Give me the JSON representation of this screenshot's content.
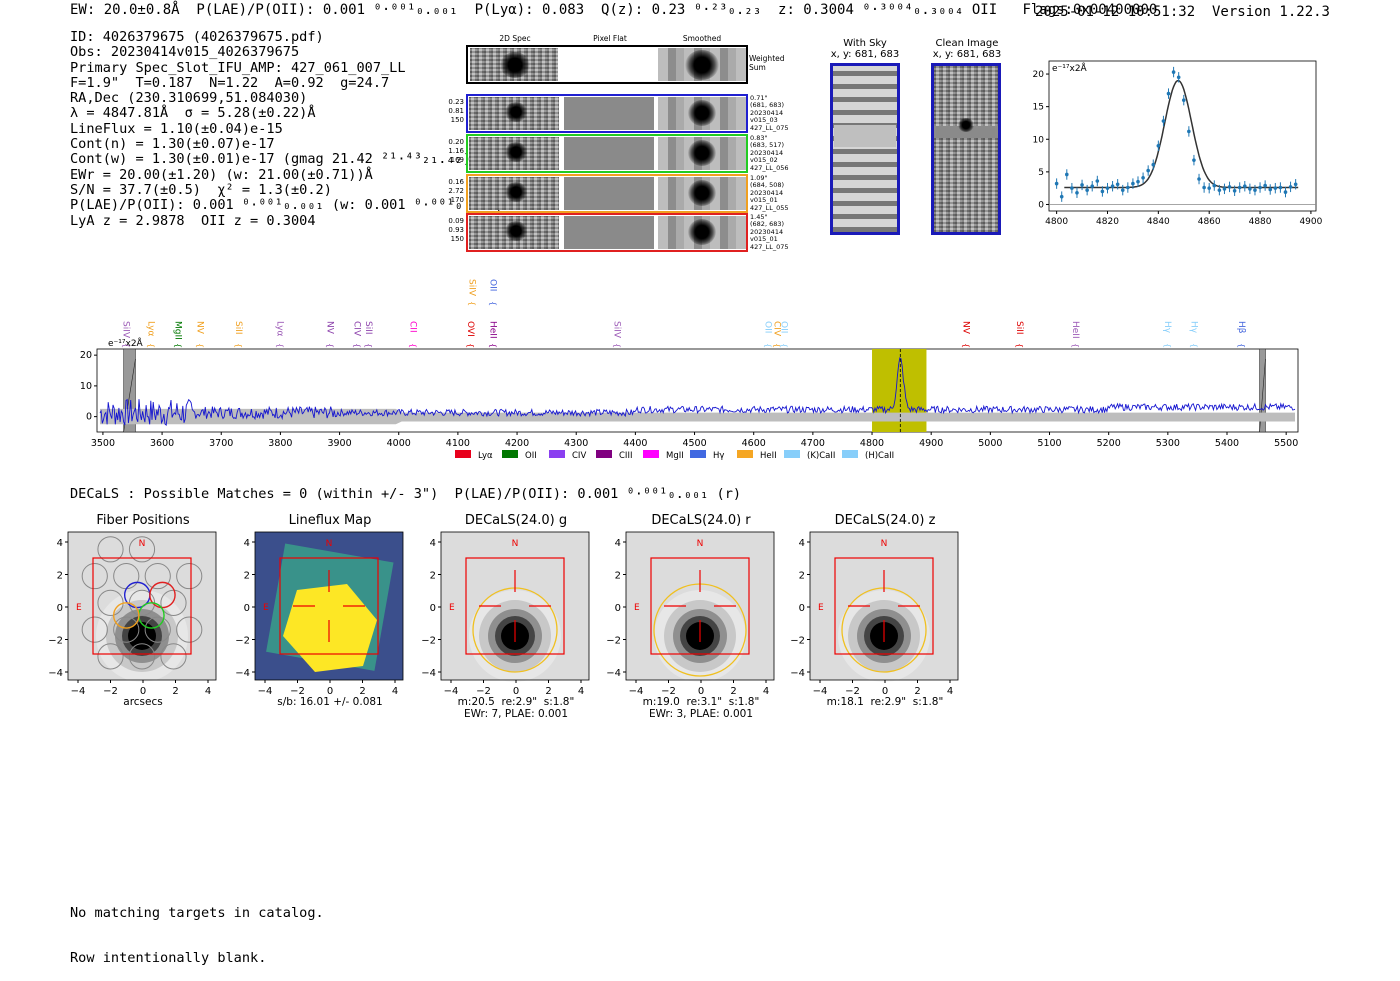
{
  "header": {
    "left": "EW: 20.0±0.8Å  P(LAE)/P(OII): 0.001 ⁰·⁰⁰¹₀.₀₀₁  P(Lyα): 0.083  Q(z): 0.23 ⁰·²³₀.₂₃  z: 0.3004 ⁰·³⁰⁰⁴₀.₃₀₀₄ OII   Flags:0x00400000",
    "right": "2025-01-12 10:51:32  Version 1.22.3"
  },
  "info": [
    "ID: 4026379675 (4026379675.pdf)",
    "Obs: 20230414v015_4026379675",
    "Primary Spec_Slot_IFU_AMP: 427_061_007_LL",
    "F=1.9\"  T=0.187  N=1.22  A=0.92  g=24.7",
    "RA,Dec (230.310699,51.084030)",
    "λ = 4847.81Å  σ = 5.28(±0.22)Å",
    "LineFlux = 1.10(±0.04)e-15",
    "Cont(n) = 1.30(±0.07)e-17",
    "Cont(w) = 1.30(±0.01)e-17 (gmag 21.42 ²¹·⁴³₂₁.₄₂)",
    "EWr = 20.00(±1.20) (w: 21.00(±0.71))Å",
    "S/N = 37.7(±0.5)  χ² = 1.3(±0.2)",
    "P(LAE)/P(OII): 0.001 ⁰·⁰⁰¹₀.₀₀₁ (w: 0.001 ⁰·⁰⁰¹₀.₀₀₁)",
    "LyA z = 2.9878  OII z = 0.3004"
  ],
  "cutouts": {
    "col_titles": [
      "2D Spec",
      "Pixel Flat",
      "Smoothed"
    ],
    "weighted_label": "Weighted\nSum",
    "rows": [
      {
        "left": "0.23\n0.81\n150",
        "right": "0.71\"\n(681, 683)\n20230414\nv015_03\n427_LL_075",
        "color": "#1f1fd0"
      },
      {
        "left": "0.20\n1.16\n169",
        "right": "0.83\"\n(683, 517)\n20230414\nv015_02\n427_LL_056",
        "color": "#22cc22"
      },
      {
        "left": "0.16\n2.72\n170",
        "right": "1.09\"\n(684, 508)\n20230414\nv015_01\n427_LL_055",
        "color": "#f0a020"
      },
      {
        "left": "0.09\n0.93\n150",
        "right": "1.45\"\n(682, 683)\n20230414\nv015_01\n427_LL_075",
        "color": "#e02020"
      }
    ],
    "with_sky_title": "With Sky\nx, y: 681, 683",
    "clean_title": "Clean Image\nx, y: 681, 683"
  },
  "line_fit": {
    "unit_label": "e⁻¹⁷x2Å",
    "x_ticks": [
      "4800",
      "4820",
      "4840",
      "4860",
      "4880",
      "4900"
    ],
    "y_ticks": [
      "0",
      "5",
      "10",
      "15",
      "20"
    ],
    "xlim": [
      4797,
      4902
    ],
    "ylim": [
      -1,
      22
    ],
    "x": [
      4800,
      4802,
      4804,
      4806,
      4808,
      4810,
      4812,
      4814,
      4816,
      4818,
      4820,
      4822,
      4824,
      4826,
      4828,
      4830,
      4832,
      4834,
      4836,
      4838,
      4840,
      4842,
      4844,
      4846,
      4848,
      4850,
      4852,
      4854,
      4856,
      4858,
      4860,
      4862,
      4864,
      4866,
      4868,
      4870,
      4872,
      4874,
      4876,
      4878,
      4880,
      4882,
      4884,
      4886,
      4888,
      4890,
      4892,
      4894
    ],
    "y": [
      3.2,
      1.2,
      4.6,
      2.5,
      1.8,
      3.0,
      2.2,
      2.8,
      3.6,
      2.0,
      2.5,
      2.8,
      3.1,
      2.2,
      2.6,
      3.2,
      3.5,
      4.1,
      5.2,
      6.1,
      9.0,
      12.8,
      17.0,
      20.3,
      19.5,
      16.0,
      11.2,
      6.8,
      3.9,
      2.6,
      2.5,
      2.9,
      2.2,
      2.4,
      2.7,
      2.1,
      2.6,
      2.8,
      2.4,
      2.2,
      2.6,
      2.9,
      2.3,
      2.5,
      2.6,
      1.9,
      2.7,
      3.1
    ],
    "fit_center": 4847.81,
    "fit_sigma": 5.28,
    "fit_amp": 16.4,
    "fit_cont": 2.6
  },
  "full_spectrum": {
    "unit_label": "e⁻¹⁷x2Å",
    "x_ticks": [
      "3500",
      "3600",
      "3700",
      "3800",
      "3900",
      "4000",
      "4100",
      "4200",
      "4300",
      "4400",
      "4500",
      "4600",
      "4700",
      "4800",
      "4900",
      "5000",
      "5100",
      "5200",
      "5300",
      "5400",
      "5500"
    ],
    "y_ticks": [
      "0",
      "10",
      "20"
    ],
    "xlim": [
      3490,
      5520
    ],
    "ylim": [
      -5,
      22
    ],
    "highlight": [
      4800,
      4892
    ],
    "line_marker": 4847.8,
    "masks": [
      [
        3535,
        3555
      ],
      [
        5455,
        5465
      ]
    ],
    "line_labels": [
      {
        "name": "SiIV",
        "x": 3540,
        "color": "#9b59b6",
        "row": 1
      },
      {
        "name": "Lyα",
        "x": 3582,
        "color": "#f0a020",
        "row": 1
      },
      {
        "name": "MgII",
        "x": 3628,
        "color": "#007700",
        "row": 1
      },
      {
        "name": "NV",
        "x": 3665,
        "color": "#f0a020",
        "row": 1
      },
      {
        "name": "SiII",
        "x": 3730,
        "color": "#f0a020",
        "row": 1
      },
      {
        "name": "Lyα",
        "x": 3800,
        "color": "#9b59b6",
        "row": 1
      },
      {
        "name": "NV",
        "x": 3885,
        "color": "#8e44ad",
        "row": 1
      },
      {
        "name": "CIV",
        "x": 3930,
        "color": "#8e44ad",
        "row": 1
      },
      {
        "name": "SiII",
        "x": 3950,
        "color": "#8e44ad",
        "row": 1
      },
      {
        "name": "CII",
        "x": 4025,
        "color": "#ff00cc",
        "row": 1
      },
      {
        "name": "OVI",
        "x": 4122,
        "color": "#dd0000",
        "row": 1
      },
      {
        "name": "HeII",
        "x": 4160,
        "color": "#880088",
        "row": 1
      },
      {
        "name": "SiIV",
        "x": 4125,
        "color": "#f0a020",
        "row": 0
      },
      {
        "name": "OII",
        "x": 4160,
        "color": "#4466dd",
        "row": 0
      },
      {
        "name": "SiIV",
        "x": 4370,
        "color": "#9b59b6",
        "row": 1
      },
      {
        "name": "OII",
        "x": 4625,
        "color": "#87cefa",
        "row": 1
      },
      {
        "name": "CIV",
        "x": 4640,
        "color": "#f0a020",
        "row": 1
      },
      {
        "name": "OII",
        "x": 4652,
        "color": "#87cefa",
        "row": 1
      },
      {
        "name": "NV",
        "x": 4960,
        "color": "#dd0000",
        "row": 1
      },
      {
        "name": "SiII",
        "x": 5050,
        "color": "#dd0000",
        "row": 1
      },
      {
        "name": "HeII",
        "x": 5145,
        "color": "#9b59b6",
        "row": 1
      },
      {
        "name": "Hγ",
        "x": 5300,
        "color": "#87cefa",
        "row": 1
      },
      {
        "name": "Hγ",
        "x": 5345,
        "color": "#87cefa",
        "row": 1
      },
      {
        "name": "Hβ",
        "x": 5425,
        "color": "#4466dd",
        "row": 1
      }
    ],
    "legend": [
      {
        "name": "Lyα",
        "color": "#e8001c"
      },
      {
        "name": "OII",
        "color": "#007700"
      },
      {
        "name": "CIV",
        "color": "#8a3ff0"
      },
      {
        "name": "CIII",
        "color": "#800080"
      },
      {
        "name": "MgII",
        "color": "#ff00ff"
      },
      {
        "name": "Hγ",
        "color": "#4169e1"
      },
      {
        "name": "HeII",
        "color": "#f5a623"
      },
      {
        "name": "(K)CaII",
        "color": "#87cefa"
      },
      {
        "name": "(H)CaII",
        "color": "#87cefa"
      }
    ]
  },
  "decals_line": "DECaLS : Possible Matches = 0 (within +/- 3\")  P(LAE)/P(OII): 0.001 ⁰·⁰⁰¹₀.₀₀₁ (r)",
  "stamps": [
    {
      "title": "Fiber Positions",
      "cap": "arcsecs",
      "kind": "fiber"
    },
    {
      "title": "Lineflux Map",
      "cap": "s/b: 16.01 +/- 0.081",
      "kind": "lineflux"
    },
    {
      "title": "DECaLS(24.0) g",
      "cap": "m:20.5  re:2.9\"  s:1.8\"\nEWr: 7, PLAE: 0.001",
      "kind": "image"
    },
    {
      "title": "DECaLS(24.0) r",
      "cap": "m:19.0  re:3.1\"  s:1.8\"\nEWr: 3, PLAE: 0.001",
      "kind": "image"
    },
    {
      "title": "DECaLS(24.0) z",
      "cap": "m:18.1  re:2.9\"  s:1.8\"",
      "kind": "image"
    }
  ],
  "stamp_ticks": [
    "−4",
    "−2",
    "0",
    "2",
    "4"
  ],
  "stamp_n": "N",
  "stamp_e": "E",
  "footer": [
    "No matching targets in catalog.",
    "Row intentionally blank."
  ]
}
